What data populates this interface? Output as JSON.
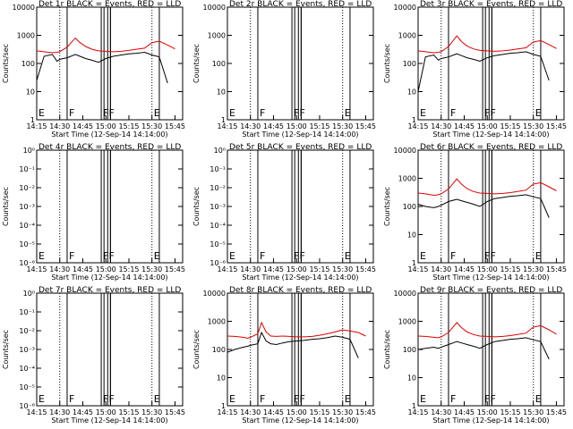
{
  "colors": {
    "events": "#000000",
    "lld": "#e00000",
    "marker": "#000000"
  },
  "shared": {
    "xlabel": "Start Time (12-Sep-14 14:14:00)",
    "ylabel": "Counts/sec",
    "xticks": [
      "14:15",
      "14:30",
      "14:45",
      "15:00",
      "15:15",
      "15:30",
      "15:45"
    ],
    "yticks_log": [
      "1",
      "10",
      "100",
      "1000",
      "10000"
    ],
    "yticks_empty": [
      "10⁰",
      "10⁻¹",
      "10⁻²",
      "10⁻³",
      "10⁻⁴",
      "10⁻⁵",
      "10⁻⁶"
    ],
    "flag_letters": [
      "E",
      "F",
      "FF",
      "E"
    ]
  },
  "chart_data": [
    {
      "type": "line",
      "title": "Det 1r BLACK = Events, RED = LLD",
      "xlabel": "Start Time (12-Sep-14 14:14:00)",
      "ylabel": "Counts/sec",
      "scale": "log",
      "ylim": [
        1,
        10000
      ],
      "y_ticks": [
        "1",
        "10",
        "100",
        "1000",
        "10000"
      ],
      "flags": [
        "E",
        "F",
        "FF",
        "E"
      ],
      "series": [
        {
          "x": [
            14.25,
            14.33,
            14.42,
            14.47,
            14.5,
            14.58,
            14.67,
            14.72,
            14.78,
            14.85,
            14.92,
            15,
            15.08,
            15.17,
            15.25,
            15.33,
            15.42,
            15.5,
            15.58,
            15.67,
            15.75
          ],
          "values": [
            280,
            260,
            240,
            250,
            260,
            380,
            800,
            550,
            400,
            320,
            280,
            270,
            260,
            270,
            290,
            320,
            350,
            550,
            620,
            450,
            330
          ]
        },
        {
          "x": [
            14.25,
            14.33,
            14.42,
            14.47,
            14.5,
            14.58,
            14.67,
            14.72,
            14.78,
            14.85,
            14.92,
            15,
            15.08,
            15.17,
            15.25,
            15.33,
            15.42,
            15.5,
            15.58,
            15.67
          ],
          "values": [
            25,
            180,
            210,
            120,
            140,
            160,
            210,
            180,
            150,
            130,
            110,
            150,
            180,
            200,
            220,
            230,
            250,
            200,
            170,
            20
          ]
        }
      ]
    },
    {
      "type": "line",
      "title": "Det 2r BLACK = Events, RED = LLD",
      "xlabel": "Start Time (12-Sep-14 14:14:00)",
      "ylabel": "Counts/sec",
      "scale": "log",
      "ylim": [
        1,
        10000
      ],
      "y_ticks": [
        "1",
        "10",
        "100",
        "1000",
        "10000"
      ],
      "flags": [
        "E",
        "F",
        "FF",
        "E"
      ],
      "series": []
    },
    {
      "type": "line",
      "title": "Det 3r BLACK = Events, RED = LLD",
      "xlabel": "Start Time (12-Sep-14 14:14:00)",
      "ylabel": "Counts/sec",
      "scale": "log",
      "ylim": [
        1,
        10000
      ],
      "y_ticks": [
        "1",
        "10",
        "100",
        "1000",
        "10000"
      ],
      "flags": [
        "E",
        "F",
        "FF",
        "E"
      ],
      "series": [
        {
          "x": [
            14.25,
            14.33,
            14.42,
            14.47,
            14.5,
            14.58,
            14.67,
            14.72,
            14.78,
            14.85,
            14.92,
            15,
            15.08,
            15.17,
            15.25,
            15.33,
            15.42,
            15.5,
            15.58,
            15.67,
            15.75
          ],
          "values": [
            280,
            260,
            240,
            250,
            260,
            400,
            950,
            600,
            420,
            330,
            290,
            280,
            270,
            280,
            300,
            330,
            360,
            580,
            650,
            470,
            340
          ]
        },
        {
          "x": [
            14.25,
            14.33,
            14.42,
            14.47,
            14.5,
            14.58,
            14.67,
            14.72,
            14.78,
            14.85,
            14.92,
            15,
            15.08,
            15.17,
            15.25,
            15.33,
            15.42,
            15.5,
            15.58,
            15.67
          ],
          "values": [
            10,
            170,
            200,
            130,
            150,
            170,
            220,
            190,
            160,
            140,
            120,
            160,
            190,
            210,
            230,
            240,
            260,
            210,
            180,
            25
          ]
        }
      ]
    },
    {
      "type": "line",
      "title": "Det 4r BLACK = Events, RED = LLD",
      "xlabel": "Start Time (12-Sep-14 14:14:00)",
      "ylabel": "Counts/sec",
      "scale": "log",
      "ylim": [
        1e-06,
        1
      ],
      "y_ticks": [
        "10⁰",
        "10⁻¹",
        "10⁻²",
        "10⁻³",
        "10⁻⁴",
        "10⁻⁵",
        "10⁻⁶"
      ],
      "flags": [
        "E",
        "F",
        "FF",
        "E"
      ],
      "series": []
    },
    {
      "type": "line",
      "title": "Det 5r BLACK = Events, RED = LLD",
      "xlabel": "Start Time (12-Sep-14 14:14:00)",
      "ylabel": "Counts/sec",
      "scale": "log",
      "ylim": [
        1e-06,
        1
      ],
      "y_ticks": [
        "10⁰",
        "10⁻¹",
        "10⁻²",
        "10⁻³",
        "10⁻⁴",
        "10⁻⁵",
        "10⁻⁶"
      ],
      "flags": [
        "E",
        "F",
        "FF",
        "E"
      ],
      "series": []
    },
    {
      "type": "line",
      "title": "Det 6r BLACK = Events, RED = LLD",
      "xlabel": "Start Time (12-Sep-14 14:14:00)",
      "ylabel": "Counts/sec",
      "scale": "log",
      "ylim": [
        1,
        10000
      ],
      "y_ticks": [
        "1",
        "10",
        "100",
        "1000",
        "10000"
      ],
      "flags": [
        "E",
        "F",
        "FF",
        "E"
      ],
      "series": [
        {
          "x": [
            14.25,
            14.33,
            14.42,
            14.47,
            14.5,
            14.58,
            14.67,
            14.72,
            14.78,
            14.85,
            14.92,
            15,
            15.08,
            15.17,
            15.25,
            15.33,
            15.42,
            15.5,
            15.58,
            15.67,
            15.75
          ],
          "values": [
            300,
            280,
            250,
            260,
            280,
            420,
            950,
            620,
            430,
            340,
            300,
            290,
            280,
            290,
            310,
            340,
            380,
            620,
            700,
            500,
            360
          ]
        },
        {
          "x": [
            14.25,
            14.33,
            14.42,
            14.47,
            14.5,
            14.58,
            14.67,
            14.72,
            14.78,
            14.85,
            14.92,
            15,
            15.08,
            15.17,
            15.25,
            15.33,
            15.42,
            15.5,
            15.58,
            15.67
          ],
          "values": [
            120,
            100,
            90,
            100,
            110,
            150,
            180,
            160,
            140,
            120,
            100,
            150,
            190,
            210,
            230,
            240,
            260,
            220,
            190,
            40
          ]
        }
      ]
    },
    {
      "type": "line",
      "title": "Det 7r BLACK = Events, RED = LLD",
      "xlabel": "Start Time (12-Sep-14 14:14:00)",
      "ylabel": "Counts/sec",
      "scale": "log",
      "ylim": [
        1e-06,
        1
      ],
      "y_ticks": [
        "10⁰",
        "10⁻¹",
        "10⁻²",
        "10⁻³",
        "10⁻⁴",
        "10⁻⁵",
        "10⁻⁶"
      ],
      "flags": [
        "E",
        "F",
        "FF",
        "E"
      ],
      "series": []
    },
    {
      "type": "line",
      "title": "Det 8r BLACK = Events, RED = LLD",
      "xlabel": "Start Time (12-Sep-14 14:14:00)",
      "ylabel": "Counts/sec",
      "scale": "log",
      "ylim": [
        1,
        10000
      ],
      "y_ticks": [
        "1",
        "10",
        "100",
        "1000",
        "10000"
      ],
      "flags": [
        "E",
        "F",
        "FF",
        "E"
      ],
      "series": [
        {
          "x": [
            14.25,
            14.33,
            14.42,
            14.47,
            14.5,
            14.58,
            14.62,
            14.67,
            14.72,
            14.78,
            14.85,
            14.92,
            15,
            15.08,
            15.17,
            15.25,
            15.33,
            15.42,
            15.5,
            15.58,
            15.67,
            15.75
          ],
          "values": [
            300,
            290,
            270,
            250,
            270,
            360,
            900,
            420,
            300,
            290,
            300,
            290,
            280,
            280,
            290,
            320,
            360,
            420,
            500,
            450,
            400,
            300
          ]
        },
        {
          "x": [
            14.25,
            14.33,
            14.42,
            14.47,
            14.5,
            14.58,
            14.62,
            14.67,
            14.72,
            14.78,
            14.85,
            14.92,
            15,
            15.08,
            15.17,
            15.25,
            15.33,
            15.42,
            15.5,
            15.58,
            15.67
          ],
          "values": [
            80,
            100,
            120,
            130,
            140,
            160,
            400,
            200,
            160,
            150,
            170,
            190,
            200,
            210,
            230,
            240,
            260,
            300,
            270,
            230,
            50
          ]
        }
      ]
    },
    {
      "type": "line",
      "title": "Det 9r BLACK = Events, RED = LLD",
      "xlabel": "Start Time (12-Sep-14 14:14:00)",
      "ylabel": "Counts/sec",
      "scale": "log",
      "ylim": [
        1,
        10000
      ],
      "y_ticks": [
        "1",
        "10",
        "100",
        "1000",
        "10000"
      ],
      "flags": [
        "E",
        "F",
        "FF",
        "E"
      ],
      "series": [
        {
          "x": [
            14.25,
            14.33,
            14.42,
            14.47,
            14.5,
            14.58,
            14.67,
            14.72,
            14.78,
            14.85,
            14.92,
            15,
            15.08,
            15.17,
            15.25,
            15.33,
            15.42,
            15.5,
            15.58,
            15.67,
            15.75
          ],
          "values": [
            300,
            290,
            270,
            260,
            280,
            400,
            900,
            600,
            420,
            340,
            300,
            290,
            280,
            290,
            310,
            340,
            380,
            620,
            700,
            500,
            350
          ]
        },
        {
          "x": [
            14.25,
            14.33,
            14.42,
            14.47,
            14.5,
            14.58,
            14.67,
            14.72,
            14.78,
            14.85,
            14.92,
            15,
            15.08,
            15.17,
            15.25,
            15.33,
            15.42,
            15.5,
            15.58,
            15.67
          ],
          "values": [
            100,
            110,
            120,
            110,
            120,
            150,
            190,
            170,
            150,
            130,
            110,
            150,
            190,
            210,
            230,
            240,
            260,
            220,
            190,
            45
          ]
        }
      ]
    }
  ]
}
